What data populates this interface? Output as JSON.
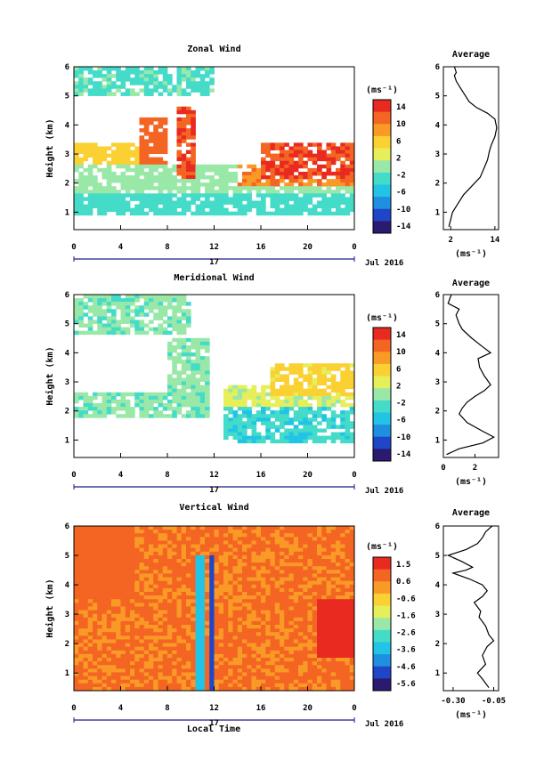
{
  "figure": {
    "date_label": "Jul 2016",
    "day_label": "17",
    "xlabel": "Local Time",
    "ylabel": "Height (km)",
    "average_title": "Average",
    "unit": "(ms⁻¹)"
  },
  "chart_data": [
    {
      "type": "heatmap",
      "title": "Zonal Wind",
      "x_ticks": [
        "0",
        "4",
        "8",
        "12",
        "16",
        "20",
        "0"
      ],
      "y_ticks": [
        "1",
        "2",
        "3",
        "4",
        "5",
        "6"
      ],
      "xlim": [
        0,
        24
      ],
      "ylim": [
        0.4,
        6.0
      ],
      "colorbar": {
        "unit": "(ms⁻¹)",
        "ticks": [
          "14",
          "10",
          "6",
          "2",
          "-2",
          "-6",
          "-10",
          "-14"
        ],
        "range": [
          -16,
          16
        ]
      },
      "regions": [
        {
          "x": [
            0,
            24
          ],
          "y": [
            0.9,
            1.6
          ],
          "value": -3
        },
        {
          "x": [
            0,
            24
          ],
          "y": [
            1.6,
            2.6
          ],
          "value": 0
        },
        {
          "x": [
            0,
            8
          ],
          "y": [
            2.6,
            3.4
          ],
          "value": 6
        },
        {
          "x": [
            5.5,
            8
          ],
          "y": [
            2.6,
            4.3
          ],
          "value": 12
        },
        {
          "x": [
            9,
            10.5
          ],
          "y": [
            2.2,
            4.6
          ],
          "value": 13
        },
        {
          "x": [
            14,
            24
          ],
          "y": [
            1.9,
            2.7
          ],
          "value": 10
        },
        {
          "x": [
            16,
            24
          ],
          "y": [
            2.2,
            3.4
          ],
          "value": 13
        },
        {
          "x": [
            0,
            12
          ],
          "y": [
            5.0,
            6.0
          ],
          "value": -2
        }
      ],
      "average_profile": {
        "xlabel": "(ms⁻¹)",
        "x_ticks": [
          "2",
          "14"
        ],
        "xlim": [
          0,
          15
        ],
        "y_ticks": [
          "1",
          "2",
          "3",
          "4",
          "5",
          "6"
        ],
        "x": [
          1.5,
          2.5,
          4.0,
          5.5,
          7.0,
          8.5,
          10.0,
          11.0,
          12.0,
          12.5,
          13.0,
          14.0,
          14.5,
          14.0,
          12.0,
          9.0,
          7.0,
          6.0,
          5.5,
          4.5,
          3.5,
          3.0,
          3.5,
          3.0
        ],
        "y": [
          0.5,
          1.0,
          1.3,
          1.6,
          1.8,
          2.0,
          2.2,
          2.5,
          2.8,
          3.1,
          3.3,
          3.6,
          3.9,
          4.2,
          4.4,
          4.6,
          4.8,
          5.0,
          5.1,
          5.3,
          5.5,
          5.7,
          5.8,
          6.0
        ]
      }
    },
    {
      "type": "heatmap",
      "title": "Meridional Wind",
      "x_ticks": [
        "0",
        "4",
        "8",
        "12",
        "16",
        "20",
        "0"
      ],
      "y_ticks": [
        "1",
        "2",
        "3",
        "4",
        "5",
        "6"
      ],
      "xlim": [
        0,
        24
      ],
      "ylim": [
        0.4,
        6.0
      ],
      "colorbar": {
        "unit": "(ms⁻¹)",
        "ticks": [
          "14",
          "10",
          "6",
          "2",
          "-2",
          "-6",
          "-10",
          "-14"
        ],
        "range": [
          -16,
          16
        ]
      },
      "regions": [
        {
          "x": [
            0,
            8
          ],
          "y": [
            1.8,
            2.6
          ],
          "value": -1
        },
        {
          "x": [
            8,
            11.5
          ],
          "y": [
            1.8,
            4.5
          ],
          "value": -1
        },
        {
          "x": [
            13,
            24
          ],
          "y": [
            0.9,
            2.1
          ],
          "value": -4
        },
        {
          "x": [
            13,
            24
          ],
          "y": [
            2.1,
            2.9
          ],
          "value": 2
        },
        {
          "x": [
            17,
            24
          ],
          "y": [
            2.5,
            3.6
          ],
          "value": 5
        },
        {
          "x": [
            0,
            10
          ],
          "y": [
            4.6,
            6.0
          ],
          "value": -1
        }
      ],
      "average_profile": {
        "xlabel": "(ms⁻¹)",
        "x_ticks": [
          "0",
          "2"
        ],
        "xlim": [
          0,
          3.5
        ],
        "y_ticks": [
          "1",
          "2",
          "3",
          "4",
          "5",
          "6"
        ],
        "x": [
          0.2,
          1.0,
          2.5,
          3.2,
          2.5,
          1.5,
          1.0,
          1.2,
          1.5,
          2.0,
          2.6,
          3.0,
          2.6,
          2.3,
          2.2,
          3.0,
          2.5,
          1.8,
          1.2,
          1.0,
          0.8,
          1.0,
          0.3,
          0.5
        ],
        "y": [
          0.5,
          0.7,
          0.9,
          1.1,
          1.3,
          1.6,
          1.9,
          2.1,
          2.3,
          2.5,
          2.7,
          2.9,
          3.2,
          3.5,
          3.8,
          4.0,
          4.2,
          4.5,
          4.8,
          5.0,
          5.3,
          5.5,
          5.7,
          6.0
        ]
      }
    },
    {
      "type": "heatmap",
      "title": "Vertical Wind",
      "x_ticks": [
        "0",
        "4",
        "8",
        "12",
        "16",
        "20",
        "0"
      ],
      "y_ticks": [
        "1",
        "2",
        "3",
        "4",
        "5",
        "6"
      ],
      "xlim": [
        0,
        24
      ],
      "ylim": [
        0.4,
        6.0
      ],
      "colorbar": {
        "unit": "(ms⁻¹)",
        "ticks": [
          "1.5",
          "0.6",
          "-0.6",
          "-1.6",
          "-2.6",
          "-3.6",
          "-4.6",
          "-5.6"
        ],
        "range": [
          -6,
          2
        ]
      },
      "regions": [
        {
          "x": [
            0,
            24
          ],
          "y": [
            0.4,
            6.0
          ],
          "value": 0.6
        },
        {
          "x": [
            0,
            5
          ],
          "y": [
            3.5,
            6.0
          ],
          "value": 1.0
        },
        {
          "x": [
            10.5,
            11.0
          ],
          "y": [
            0.4,
            5.0
          ],
          "value": -3.5
        },
        {
          "x": [
            11.5,
            12.0
          ],
          "y": [
            0.4,
            5.0
          ],
          "value": -5.0
        },
        {
          "x": [
            21,
            24
          ],
          "y": [
            1.5,
            3.5
          ],
          "value": 1.8
        }
      ],
      "average_profile": {
        "xlabel": "(ms⁻¹)",
        "x_ticks": [
          "-0.30",
          "-0.05"
        ],
        "xlim": [
          -0.36,
          -0.02
        ],
        "y_ticks": [
          "1",
          "2",
          "3",
          "4",
          "5",
          "6"
        ],
        "x": [
          -0.08,
          -0.12,
          -0.15,
          -0.1,
          -0.12,
          -0.09,
          -0.05,
          -0.08,
          -0.1,
          -0.14,
          -0.13,
          -0.17,
          -0.12,
          -0.09,
          -0.12,
          -0.2,
          -0.3,
          -0.22,
          -0.18,
          -0.25,
          -0.33,
          -0.22,
          -0.15,
          -0.12,
          -0.1,
          -0.06
        ],
        "y": [
          0.5,
          0.8,
          1.0,
          1.3,
          1.6,
          1.9,
          2.1,
          2.3,
          2.6,
          2.9,
          3.1,
          3.4,
          3.6,
          3.8,
          4.0,
          4.2,
          4.4,
          4.5,
          4.6,
          4.8,
          5.0,
          5.2,
          5.4,
          5.6,
          5.8,
          6.0
        ]
      }
    }
  ],
  "colors": {
    "scale": [
      "#2a1a70",
      "#2046c8",
      "#1f8fe0",
      "#22c4e6",
      "#44dcc8",
      "#9ae8a8",
      "#e6ee5a",
      "#fbd032",
      "#fa9a26",
      "#f46422",
      "#e82a20"
    ]
  }
}
